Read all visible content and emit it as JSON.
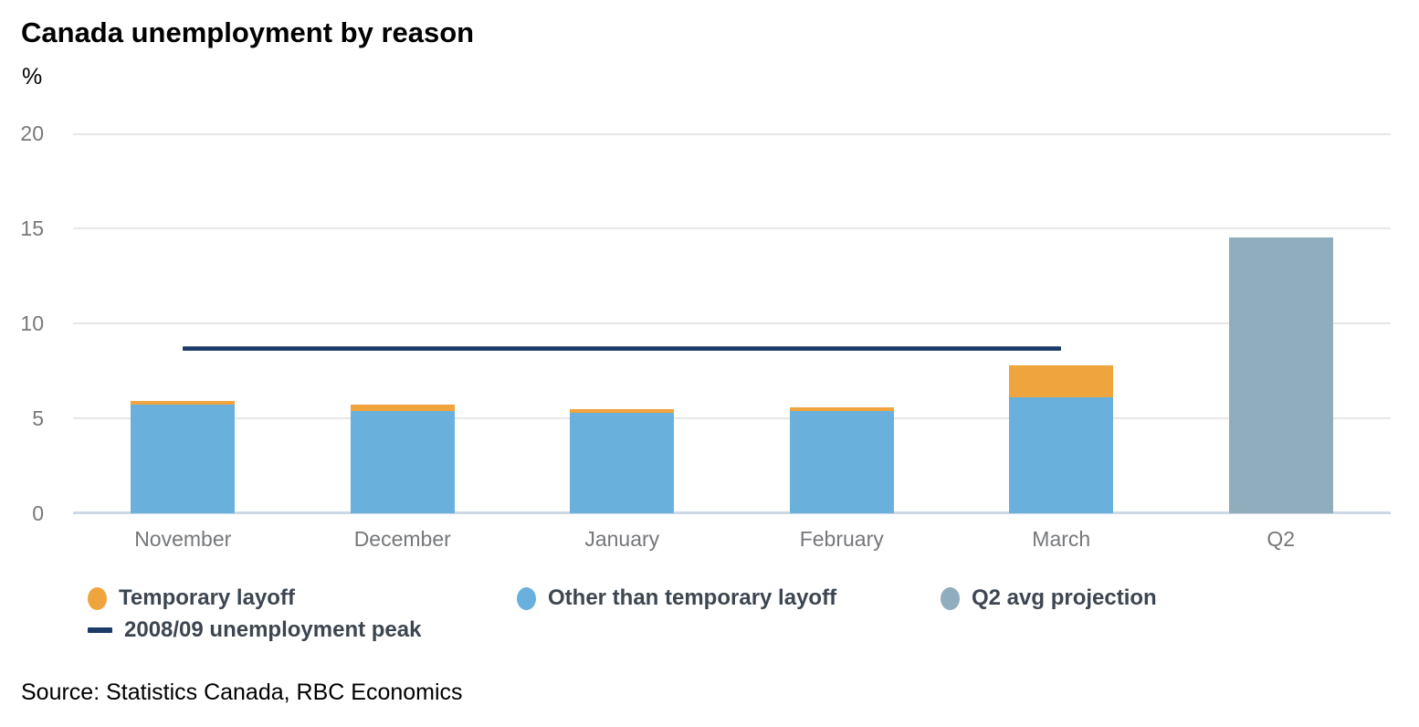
{
  "title": "Canada unemployment by reason",
  "y_axis_unit": "%",
  "source": "Source: Statistics Canada, RBC Economics",
  "colors": {
    "temporary_layoff": "#f0a43e",
    "other_than_temporary_layoff": "#69b1dc",
    "q2_avg_projection": "#8fadbd",
    "peak_line": "#1b3a67",
    "gridline": "#e7e7e7",
    "zero_line": "#cdd8e6",
    "axis_text": "#76787b",
    "legend_text": "#3d4650"
  },
  "chart_data": {
    "type": "bar",
    "stacked": true,
    "title": "Canada unemployment by reason",
    "ylabel": "%",
    "xlabel": "",
    "ylim": [
      0,
      20
    ],
    "yticks": [
      0,
      5,
      10,
      15,
      20
    ],
    "grid": true,
    "legend_position": "bottom",
    "categories": [
      "November",
      "December",
      "January",
      "February",
      "March",
      "Q2"
    ],
    "series": [
      {
        "name": "Other than temporary layoff",
        "color": "#69b1dc",
        "values": [
          5.7,
          5.4,
          5.3,
          5.4,
          6.1,
          0
        ]
      },
      {
        "name": "Temporary layoff",
        "color": "#f0a43e",
        "values": [
          0.2,
          0.3,
          0.2,
          0.2,
          1.7,
          0
        ]
      },
      {
        "name": "Q2 avg projection",
        "color": "#8fadbd",
        "values": [
          0,
          0,
          0,
          0,
          0,
          14.5
        ]
      }
    ],
    "totals_by_category": [
      5.9,
      5.7,
      5.5,
      5.6,
      7.8,
      14.5
    ],
    "reference_line": {
      "label": "2008/09 unemployment peak",
      "value": 8.7,
      "color": "#1b3a67",
      "from_category": "November",
      "to_category": "March"
    }
  },
  "legend": {
    "rows": [
      {
        "items": [
          {
            "label": "Temporary layoff",
            "marker": "circle",
            "color": "#f0a43e"
          },
          {
            "label": "Other than temporary layoff",
            "marker": "circle",
            "color": "#69b1dc"
          },
          {
            "label": "Q2 avg projection",
            "marker": "circle",
            "color": "#8fadbd"
          }
        ]
      },
      {
        "items": [
          {
            "label": "2008/09 unemployment peak",
            "marker": "line",
            "color": "#1b3a67"
          }
        ]
      }
    ]
  }
}
